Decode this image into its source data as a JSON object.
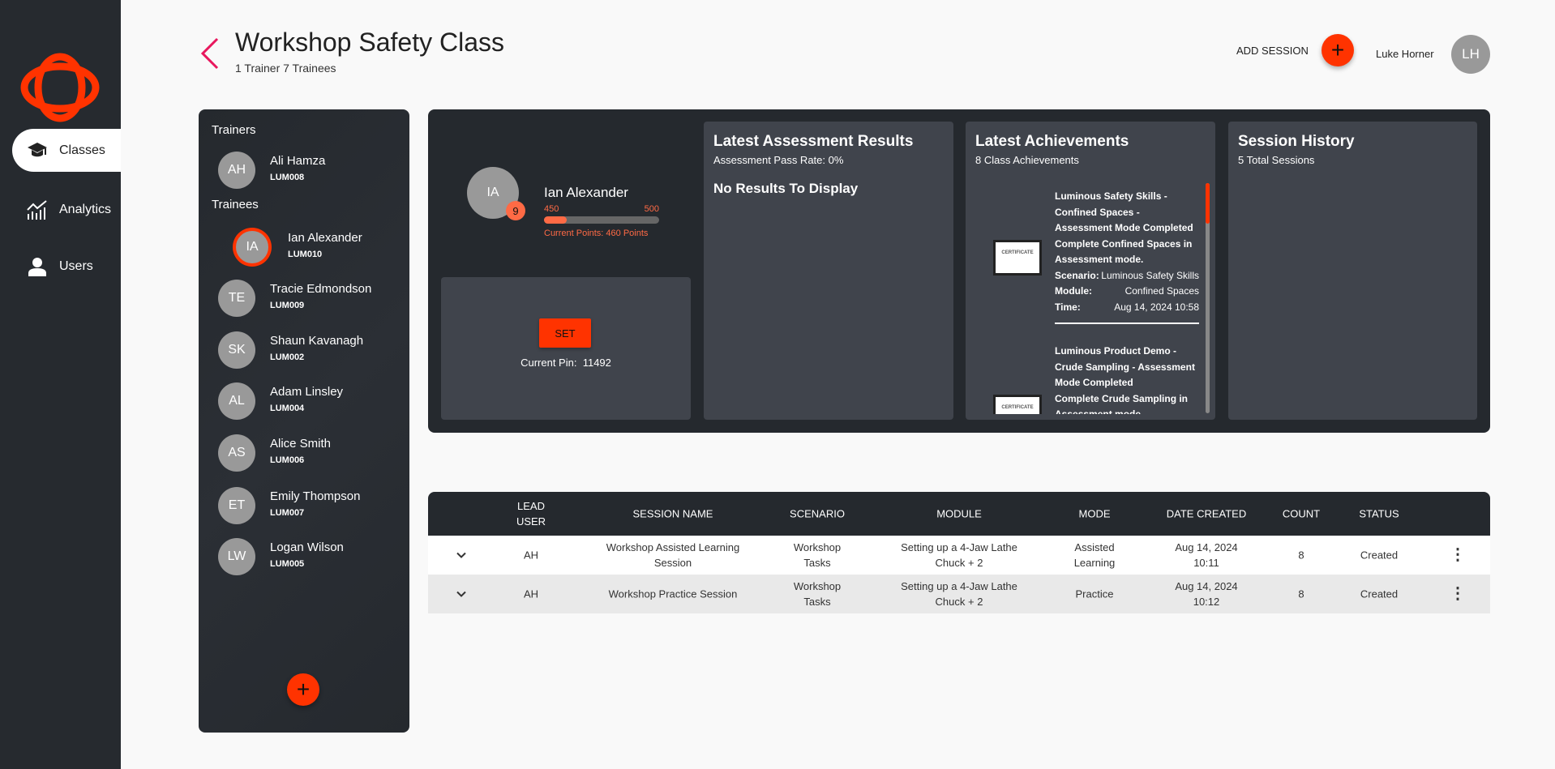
{
  "nav": {
    "items": [
      {
        "label": "Classes",
        "icon": "graduation-cap-icon",
        "active": true
      },
      {
        "label": "Analytics",
        "icon": "analytics-chart-icon"
      },
      {
        "label": "Users",
        "icon": "user-icon"
      }
    ]
  },
  "header": {
    "title": "Workshop Safety Class",
    "subtitle": "1 Trainer 7 Trainees",
    "add_session_label": "ADD SESSION",
    "add_icon": "+",
    "user_name": "Luke Horner",
    "user_initials": "LH"
  },
  "colors": {
    "accent": "#ff3300",
    "dark": "#25292e",
    "card": "#40444c"
  },
  "roster": {
    "trainers_label": "Trainers",
    "trainees_label": "Trainees",
    "trainers": [
      {
        "initials": "AH",
        "name": "Ali Hamza",
        "id": "LUM008"
      }
    ],
    "trainees": [
      {
        "initials": "IA",
        "name": "Ian Alexander",
        "id": "LUM010",
        "selected": true
      },
      {
        "initials": "TE",
        "name": "Tracie Edmondson",
        "id": "LUM009"
      },
      {
        "initials": "SK",
        "name": "Shaun Kavanagh",
        "id": "LUM002"
      },
      {
        "initials": "AL",
        "name": "Adam Linsley",
        "id": "LUM004"
      },
      {
        "initials": "AS",
        "name": "Alice Smith",
        "id": "LUM006"
      },
      {
        "initials": "ET",
        "name": "Emily Thompson",
        "id": "LUM007"
      },
      {
        "initials": "LW",
        "name": "Logan Wilson",
        "id": "LUM005"
      }
    ],
    "add_icon": "+"
  },
  "profile": {
    "initials": "IA",
    "level": "9",
    "name": "Ian Alexander",
    "min": "450",
    "max": "500",
    "points_text": "Current Points: 460 Points",
    "progress_fraction": 0.2,
    "set_label": "SET",
    "pin_label": "Current Pin:",
    "pin": "11492"
  },
  "assessment": {
    "title": "Latest Assessment Results",
    "subtitle": "Assessment Pass Rate: 0%",
    "empty": "No Results To Display"
  },
  "achievements": {
    "title": "Latest Achievements",
    "subtitle": "8 Class Achievements",
    "items": [
      {
        "title": "Luminous Safety Skills - Confined Spaces - Assessment Mode Completed",
        "desc": "Complete Confined Spaces in Assessment mode.",
        "scenario_label": "Scenario:",
        "scenario": "Luminous Safety Skills",
        "module_label": "Module:",
        "module": "Confined Spaces",
        "time_label": "Time:",
        "time": "Aug 14, 2024 10:58",
        "cert": "CERTIFICATE"
      },
      {
        "title": "Luminous Product Demo - Crude Sampling - Assessment Mode Completed",
        "desc": "Complete Crude Sampling in Assessment mode.",
        "cert": "CERTIFICATE"
      }
    ]
  },
  "history": {
    "title": "Session History",
    "subtitle": "5 Total Sessions"
  },
  "table": {
    "headers": [
      "LEAD USER",
      "SESSION NAME",
      "SCENARIO",
      "MODULE",
      "MODE",
      "DATE CREATED",
      "COUNT",
      "STATUS"
    ],
    "rows": [
      {
        "lead": "AH",
        "name": "Workshop Assisted Learning Session",
        "scenario": "Workshop Tasks",
        "module": "Setting up a 4-Jaw Lathe Chuck + 2",
        "mode": "Assisted Learning",
        "date": "Aug 14, 2024 10:11",
        "count": "8",
        "status": "Created"
      },
      {
        "lead": "AH",
        "name": "Workshop Practice Session",
        "scenario": "Workshop Tasks",
        "module": "Setting up a 4-Jaw Lathe Chuck + 2",
        "mode": "Practice",
        "date": "Aug 14, 2024 10:12",
        "count": "8",
        "status": "Created"
      }
    ]
  }
}
